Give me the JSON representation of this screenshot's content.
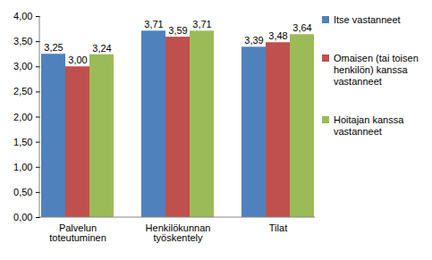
{
  "chart_data": {
    "type": "bar",
    "categories": [
      "Palvelun toteutuminen",
      "Henkilökunnan työskentely",
      "Tilat"
    ],
    "series": [
      {
        "name": "Itse vastanneet",
        "color": "#4f81bd",
        "values": [
          3.25,
          3.71,
          3.39
        ],
        "value_labels": [
          "3,25",
          "3,71",
          "3,39"
        ]
      },
      {
        "name": "Omaisen (tai toisen henkilön) kanssa vastanneet",
        "color": "#c0504d",
        "values": [
          3.0,
          3.59,
          3.48
        ],
        "value_labels": [
          "3,00",
          "3,59",
          "3,48"
        ]
      },
      {
        "name": "Hoitajan kanssa vastanneet",
        "color": "#9bbb59",
        "values": [
          3.24,
          3.71,
          3.64
        ],
        "value_labels": [
          "3,24",
          "3,71",
          "3,64"
        ]
      }
    ],
    "ylim": [
      0,
      4
    ],
    "yticks": [
      {
        "value": 0,
        "label": "0,00"
      },
      {
        "value": 0.5,
        "label": "0,50"
      },
      {
        "value": 1,
        "label": "1,00"
      },
      {
        "value": 1.5,
        "label": "1,50"
      },
      {
        "value": 2,
        "label": "2,00"
      },
      {
        "value": 2.5,
        "label": "2,50"
      },
      {
        "value": 3,
        "label": "3,00"
      },
      {
        "value": 3.5,
        "label": "3,50"
      },
      {
        "value": 4,
        "label": "4,00"
      }
    ],
    "grid": false,
    "legend": "right",
    "data_labels": true
  }
}
